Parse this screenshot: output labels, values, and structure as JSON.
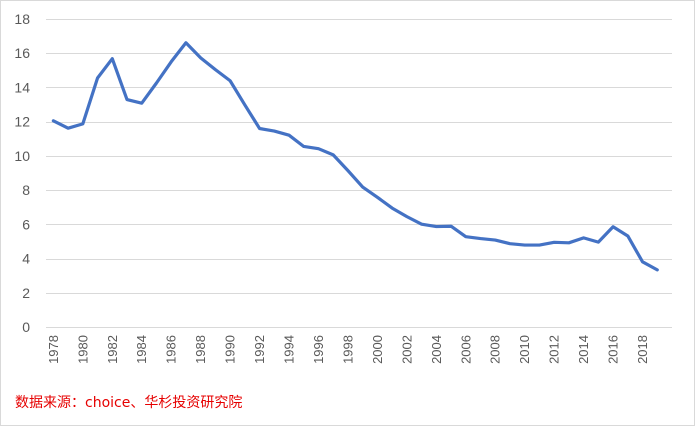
{
  "chart_data": {
    "type": "line",
    "title": "",
    "xlabel": "",
    "ylabel": "",
    "ylim": [
      0,
      18
    ],
    "yticks": [
      0,
      2,
      4,
      6,
      8,
      10,
      12,
      14,
      16,
      18
    ],
    "xticks": [
      "1978",
      "1980",
      "1982",
      "1984",
      "1986",
      "1988",
      "1990",
      "1992",
      "1994",
      "1996",
      "1998",
      "2000",
      "2002",
      "2004",
      "2006",
      "2008",
      "2010",
      "2012",
      "2014",
      "2016",
      "2018"
    ],
    "grid": true,
    "legend": "none",
    "x": [
      1978,
      1979,
      1980,
      1981,
      1982,
      1983,
      1984,
      1985,
      1986,
      1987,
      1988,
      1989,
      1990,
      1991,
      1992,
      1993,
      1994,
      1995,
      1996,
      1997,
      1998,
      1999,
      2000,
      2001,
      2002,
      2003,
      2004,
      2005,
      2006,
      2007,
      2008,
      2009,
      2010,
      2011,
      2012,
      2013,
      2014,
      2015,
      2016,
      2017,
      2018,
      2019
    ],
    "series": [
      {
        "values": [
          12.05,
          11.62,
          11.87,
          14.55,
          15.68,
          13.29,
          13.08,
          14.26,
          15.5,
          16.61,
          15.73,
          15.04,
          14.39,
          12.98,
          11.6,
          11.45,
          11.21,
          10.55,
          10.42,
          10.06,
          9.14,
          8.18,
          7.58,
          6.95,
          6.45,
          6.01,
          5.87,
          5.89,
          5.28,
          5.17,
          5.08,
          4.87,
          4.79,
          4.79,
          4.95,
          4.92,
          5.21,
          4.96,
          5.86,
          5.32,
          3.81,
          3.34
        ],
        "color": "#4472c4"
      }
    ],
    "gridline_color": "#d9d9d9",
    "tick_label_color": "#595959"
  },
  "source_note": "数据来源：choice、华杉投资研究院"
}
